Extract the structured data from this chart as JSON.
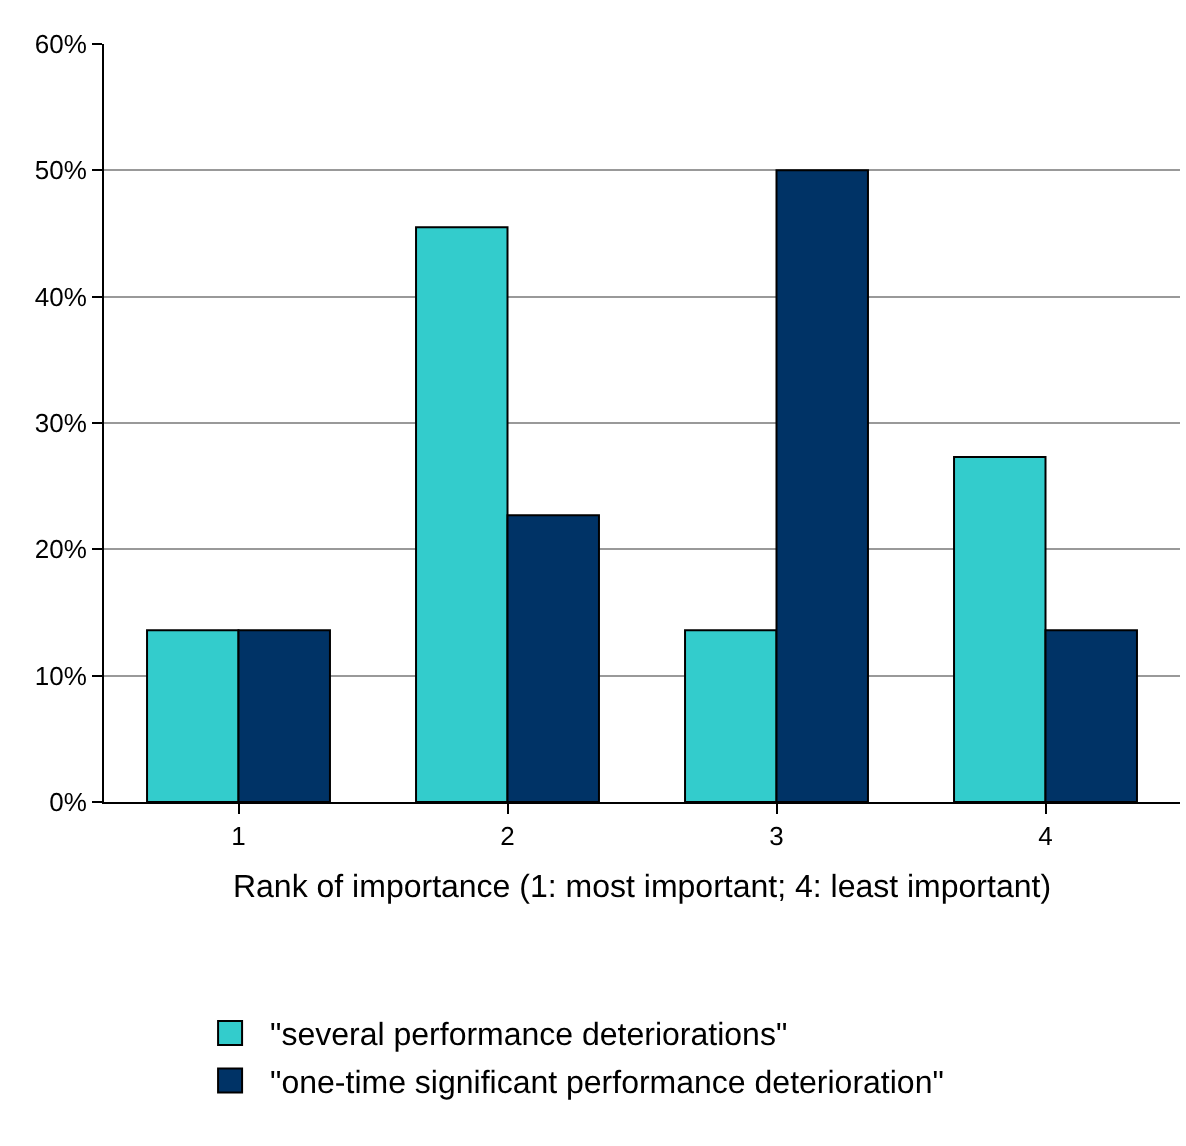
{
  "chart_data": {
    "type": "bar",
    "xlabel": "Rank of importance (1: most important; 4: least important)",
    "categories": [
      "1",
      "2",
      "3",
      "4"
    ],
    "series": [
      {
        "name": "\"several performance deteriorations\"",
        "color": "#33cccc",
        "values": [
          13.6,
          45.5,
          13.6,
          27.3
        ]
      },
      {
        "name": "\"one-time significant performance deterioration\"",
        "color": "#003366",
        "values": [
          13.6,
          22.7,
          50,
          13.6
        ]
      }
    ],
    "ylim": [
      0,
      60
    ],
    "yticks": [
      {
        "value": 0,
        "label": "0%"
      },
      {
        "value": 10,
        "label": "10%"
      },
      {
        "value": 20,
        "label": "20%"
      },
      {
        "value": 30,
        "label": "30%"
      },
      {
        "value": 40,
        "label": "40%"
      },
      {
        "value": 50,
        "label": "50%"
      },
      {
        "value": 60,
        "label": "60%"
      }
    ],
    "grid": "y",
    "legend": "bottom"
  }
}
